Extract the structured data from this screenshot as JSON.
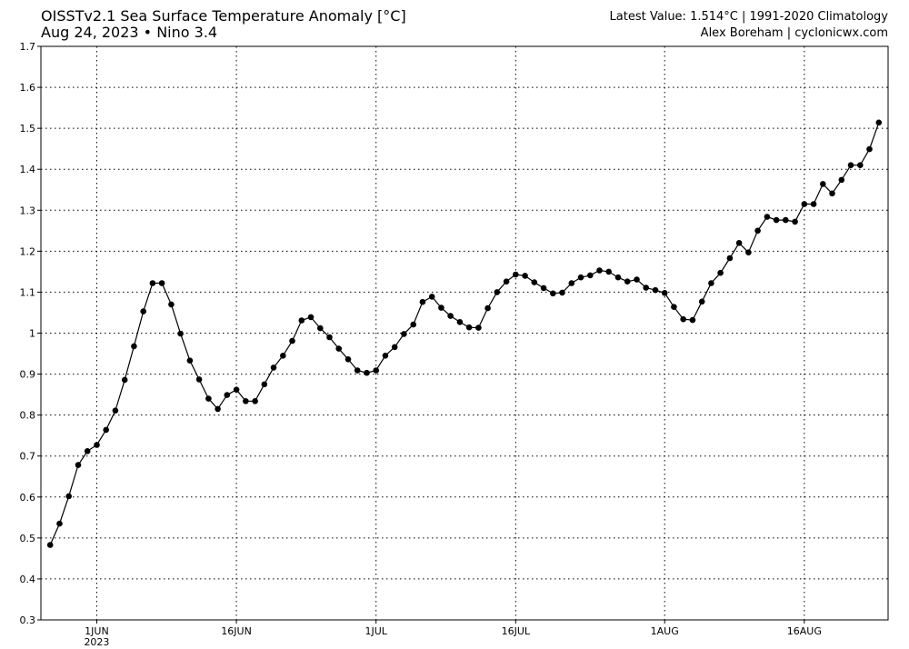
{
  "header": {
    "title": "OISSTv2.1 Sea Surface Temperature Anomaly [°C]",
    "subtitle_date": "Aug 24, 2023",
    "subtitle_sep": "•",
    "subtitle_region": "Nino 3.4",
    "latest_value": "Latest Value: 1.514°C | 1991-2020 Climatology",
    "credit": "Alex Boreham | cyclonicwx.com"
  },
  "chart_data": {
    "type": "line",
    "title": "OISSTv2.1 Sea Surface Temperature Anomaly [°C]",
    "xlabel": "",
    "ylabel": "",
    "ylim": [
      0.3,
      1.7
    ],
    "yticks": [
      0.3,
      0.4,
      0.5,
      0.6,
      0.7,
      0.8,
      0.9,
      1,
      1.1,
      1.2,
      1.3,
      1.4,
      1.5,
      1.6,
      1.7
    ],
    "ytick_labels": [
      "0.3",
      "0.4",
      "0.5",
      "0.6",
      "0.7",
      "0.8",
      "0.9",
      "1",
      "1.1",
      "1.2",
      "1.3",
      "1.4",
      "1.5",
      "1.6",
      "1.7"
    ],
    "xlim": [
      "2023-05-26",
      "2023-08-25"
    ],
    "xticks": [
      {
        "date": "2023-06-01",
        "label": "1JUN",
        "sublabel": "2023"
      },
      {
        "date": "2023-06-16",
        "label": "16JUN"
      },
      {
        "date": "2023-07-01",
        "label": "1JUL"
      },
      {
        "date": "2023-07-16",
        "label": "16JUL"
      },
      {
        "date": "2023-08-01",
        "label": "1AUG"
      },
      {
        "date": "2023-08-16",
        "label": "16AUG"
      }
    ],
    "grid": true,
    "line_color": "#000000",
    "start_date": "2023-05-27",
    "values": [
      0.483,
      0.535,
      0.602,
      0.678,
      0.712,
      0.727,
      0.764,
      0.811,
      0.886,
      0.968,
      1.053,
      1.122,
      1.122,
      1.07,
      0.999,
      0.933,
      0.887,
      0.84,
      0.815,
      0.849,
      0.862,
      0.834,
      0.834,
      0.875,
      0.916,
      0.945,
      0.981,
      1.031,
      1.039,
      1.012,
      0.99,
      0.962,
      0.936,
      0.909,
      0.903,
      0.909,
      0.945,
      0.966,
      0.998,
      1.021,
      1.076,
      1.089,
      1.062,
      1.042,
      1.027,
      1.014,
      1.013,
      1.061,
      1.1,
      1.126,
      1.143,
      1.14,
      1.124,
      1.11,
      1.097,
      1.099,
      1.122,
      1.136,
      1.141,
      1.153,
      1.15,
      1.136,
      1.126,
      1.131,
      1.111,
      1.105,
      1.098,
      1.064,
      1.034,
      1.032,
      1.077,
      1.122,
      1.147,
      1.183,
      1.22,
      1.197,
      1.25,
      1.284,
      1.276,
      1.276,
      1.272,
      1.315,
      1.315,
      1.364,
      1.341,
      1.374,
      1.41,
      1.41,
      1.449,
      1.514
    ]
  }
}
